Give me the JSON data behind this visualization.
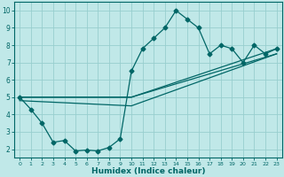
{
  "bg_color": "#c0e8e8",
  "grid_color": "#98cece",
  "line_color": "#006666",
  "xlabel": "Humidex (Indice chaleur)",
  "xlim": [
    -0.5,
    23.5
  ],
  "ylim": [
    1.5,
    10.5
  ],
  "xticks": [
    0,
    1,
    2,
    3,
    4,
    5,
    6,
    7,
    8,
    9,
    10,
    11,
    12,
    13,
    14,
    15,
    16,
    17,
    18,
    19,
    20,
    21,
    22,
    23
  ],
  "yticks": [
    2,
    3,
    4,
    5,
    6,
    7,
    8,
    9,
    10
  ],
  "main_x": [
    0,
    1,
    2,
    3,
    4,
    5,
    6,
    7,
    8,
    9,
    10,
    11,
    12,
    13,
    14,
    15,
    16,
    17,
    18,
    19,
    20,
    21,
    22,
    23
  ],
  "main_y": [
    5.0,
    4.3,
    3.5,
    2.4,
    2.5,
    1.9,
    1.95,
    1.9,
    2.1,
    2.6,
    6.5,
    7.8,
    8.4,
    9.0,
    10.0,
    9.5,
    9.0,
    7.5,
    8.0,
    7.8,
    7.0,
    8.0,
    7.5,
    7.8
  ],
  "trend1_x": [
    0,
    10,
    23
  ],
  "trend1_y": [
    5.0,
    5.0,
    7.5
  ],
  "trend2_x": [
    0,
    10,
    23
  ],
  "trend2_y": [
    5.0,
    5.0,
    7.8
  ],
  "trend3_x": [
    0,
    10,
    23
  ],
  "trend3_y": [
    4.8,
    4.5,
    7.5
  ]
}
